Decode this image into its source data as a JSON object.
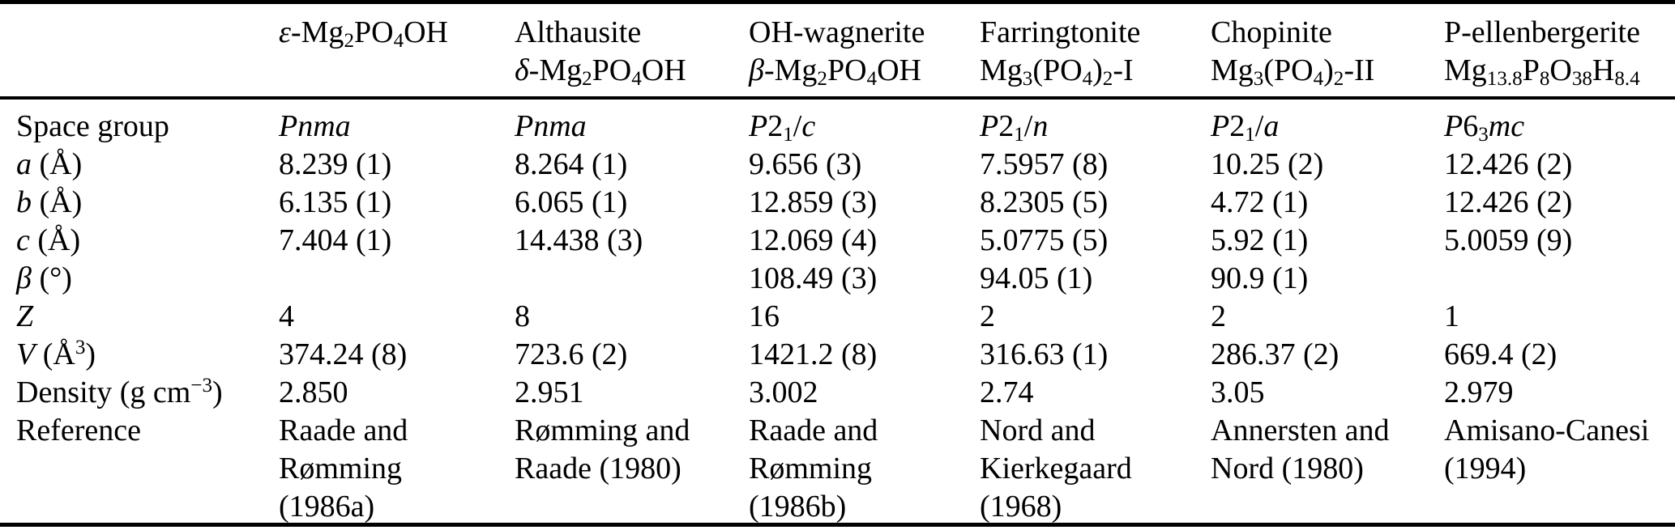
{
  "table": {
    "title_hint": "Crystallographic data of magnesium phosphate phases",
    "header": {
      "corner": "",
      "columns": [
        {
          "line1": "*ε*-Mg~2~PO~4~OH",
          "line2": ""
        },
        {
          "line1": "Althausite",
          "line2": "*δ*-Mg~2~PO~4~OH"
        },
        {
          "line1": "OH-wagnerite",
          "line2": "*β*-Mg~2~PO~4~OH"
        },
        {
          "line1": "Farringtonite",
          "line2": "Mg~3~(PO~4~)~2~-I"
        },
        {
          "line1": "Chopinite",
          "line2": "Mg~3~(PO~4~)~2~-II"
        },
        {
          "line1": "P-ellenbergerite",
          "line2": "Mg~13.8~P~8~O~38~H~8.4~"
        }
      ]
    },
    "rows": [
      {
        "label": "Space group",
        "cells": [
          "*Pnma*",
          "*Pnma*",
          "*P*2~1~/*c*",
          "*P*2~1~/*n*",
          "*P*2~1~/*a*",
          "*P*6~3~*mc*"
        ]
      },
      {
        "label": "*a* (Å)",
        "cells": [
          "8.239 (1)",
          "8.264 (1)",
          "9.656 (3)",
          "7.5957 (8)",
          "10.25 (2)",
          "12.426 (2)"
        ]
      },
      {
        "label": "*b* (Å)",
        "cells": [
          "6.135 (1)",
          "6.065 (1)",
          "12.859 (3)",
          "8.2305 (5)",
          "4.72 (1)",
          "12.426 (2)"
        ]
      },
      {
        "label": "*c* (Å)",
        "cells": [
          "7.404 (1)",
          "14.438 (3)",
          "12.069 (4)",
          "5.0775 (5)",
          "5.92 (1)",
          "5.0059 (9)"
        ]
      },
      {
        "label": "*β* (°)",
        "cells": [
          "",
          "",
          "108.49 (3)",
          "94.05 (1)",
          "90.9 (1)",
          ""
        ]
      },
      {
        "label": "*Z*",
        "cells": [
          "4",
          "8",
          "16",
          "2",
          "2",
          "1"
        ]
      },
      {
        "label": "*V* (Å^3^)",
        "cells": [
          "374.24 (8)",
          "723.6 (2)",
          "1421.2 (8)",
          "316.63 (1)",
          "286.37 (2)",
          "669.4 (2)"
        ]
      },
      {
        "label": "Density (g cm^−3^)",
        "cells": [
          "2.850",
          "2.951",
          "3.002",
          "2.74",
          "3.05",
          "2.979"
        ]
      },
      {
        "label": "Reference",
        "cells": [
          "Raade and\nRømming\n(1986a)",
          "Rømming and\nRaade (1980)",
          "Raade and\nRømming\n(1986b)",
          "Nord and\nKierkegaard\n(1968)",
          "Annersten and\nNord (1980)",
          "Amisano-Canesi\n(1994)"
        ]
      }
    ]
  },
  "colors": {
    "text": "#000000",
    "background": "#ffffff",
    "rule": "#000000"
  }
}
